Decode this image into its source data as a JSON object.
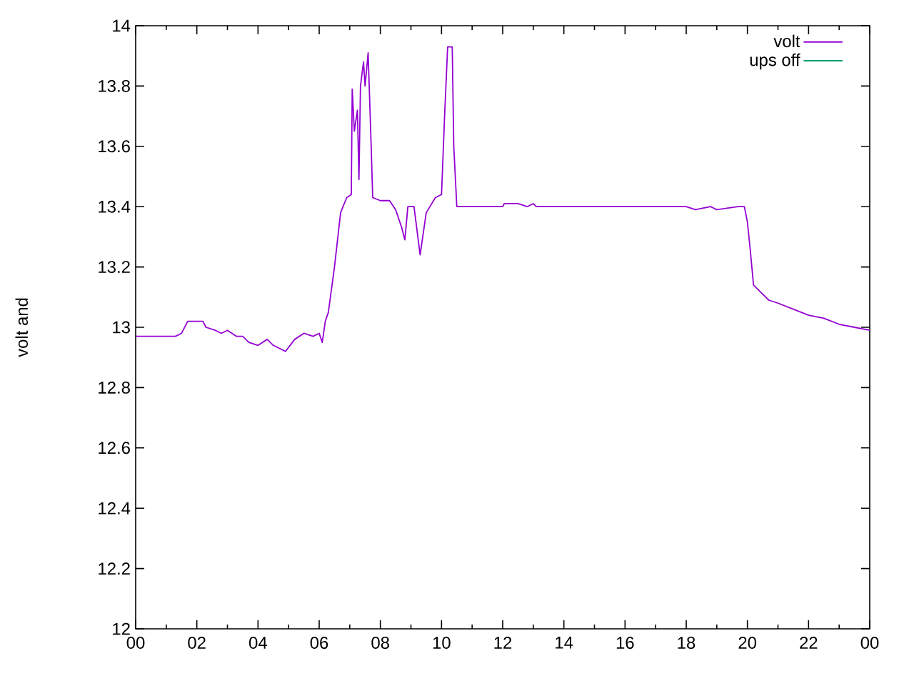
{
  "chart_data": {
    "type": "line",
    "ylabel": "volt and",
    "xlim": [
      0,
      24
    ],
    "xticks": [
      {
        "value": 0,
        "label": "00"
      },
      {
        "value": 2,
        "label": "02"
      },
      {
        "value": 4,
        "label": "04"
      },
      {
        "value": 6,
        "label": "06"
      },
      {
        "value": 8,
        "label": "08"
      },
      {
        "value": 10,
        "label": "10"
      },
      {
        "value": 12,
        "label": "12"
      },
      {
        "value": 14,
        "label": "14"
      },
      {
        "value": 16,
        "label": "16"
      },
      {
        "value": 18,
        "label": "18"
      },
      {
        "value": 20,
        "label": "20"
      },
      {
        "value": 22,
        "label": "22"
      },
      {
        "value": 24,
        "label": "00"
      }
    ],
    "ylim": [
      12,
      14
    ],
    "yticks": [
      12,
      12.2,
      12.4,
      12.6,
      12.8,
      13,
      13.2,
      13.4,
      13.6,
      13.8,
      14
    ],
    "legend": "top right",
    "grid": false,
    "series": [
      {
        "name": "volt",
        "color": "#9400d3",
        "x": [
          0,
          1.3,
          1.5,
          1.7,
          2.2,
          2.3,
          2.6,
          2.8,
          3.0,
          3.3,
          3.5,
          3.7,
          4.0,
          4.3,
          4.5,
          4.9,
          5.2,
          5.5,
          5.8,
          6.0,
          6.1,
          6.2,
          6.3,
          6.5,
          6.7,
          6.9,
          7.05,
          7.08,
          7.15,
          7.25,
          7.3,
          7.35,
          7.45,
          7.5,
          7.6,
          7.7,
          7.75,
          8.0,
          8.3,
          8.5,
          8.7,
          8.8,
          8.9,
          9.1,
          9.3,
          9.5,
          9.8,
          10.0,
          10.1,
          10.2,
          10.35,
          10.4,
          10.5,
          12.0,
          12.05,
          12.5,
          12.8,
          13.0,
          13.1,
          18.0,
          18.3,
          18.8,
          19.0,
          19.7,
          19.9,
          20.0,
          20.1,
          20.2,
          20.4,
          20.7,
          21.0,
          21.5,
          22.0,
          22.5,
          23.0,
          23.5,
          24.0
        ],
        "values": [
          12.97,
          12.97,
          12.98,
          13.02,
          13.02,
          13.0,
          12.99,
          12.98,
          12.99,
          12.97,
          12.97,
          12.95,
          12.94,
          12.96,
          12.94,
          12.92,
          12.96,
          12.98,
          12.97,
          12.98,
          12.95,
          13.02,
          13.05,
          13.2,
          13.38,
          13.43,
          13.44,
          13.79,
          13.65,
          13.72,
          13.49,
          13.8,
          13.88,
          13.8,
          13.91,
          13.6,
          13.43,
          13.42,
          13.42,
          13.39,
          13.33,
          13.29,
          13.4,
          13.4,
          13.24,
          13.38,
          13.43,
          13.44,
          13.7,
          13.93,
          13.93,
          13.6,
          13.4,
          13.4,
          13.41,
          13.41,
          13.4,
          13.41,
          13.4,
          13.4,
          13.39,
          13.4,
          13.39,
          13.4,
          13.4,
          13.35,
          13.25,
          13.14,
          13.12,
          13.09,
          13.08,
          13.06,
          13.04,
          13.03,
          13.01,
          13.0,
          12.99
        ]
      },
      {
        "name": "ups off",
        "color": "#009e73"
      }
    ]
  }
}
